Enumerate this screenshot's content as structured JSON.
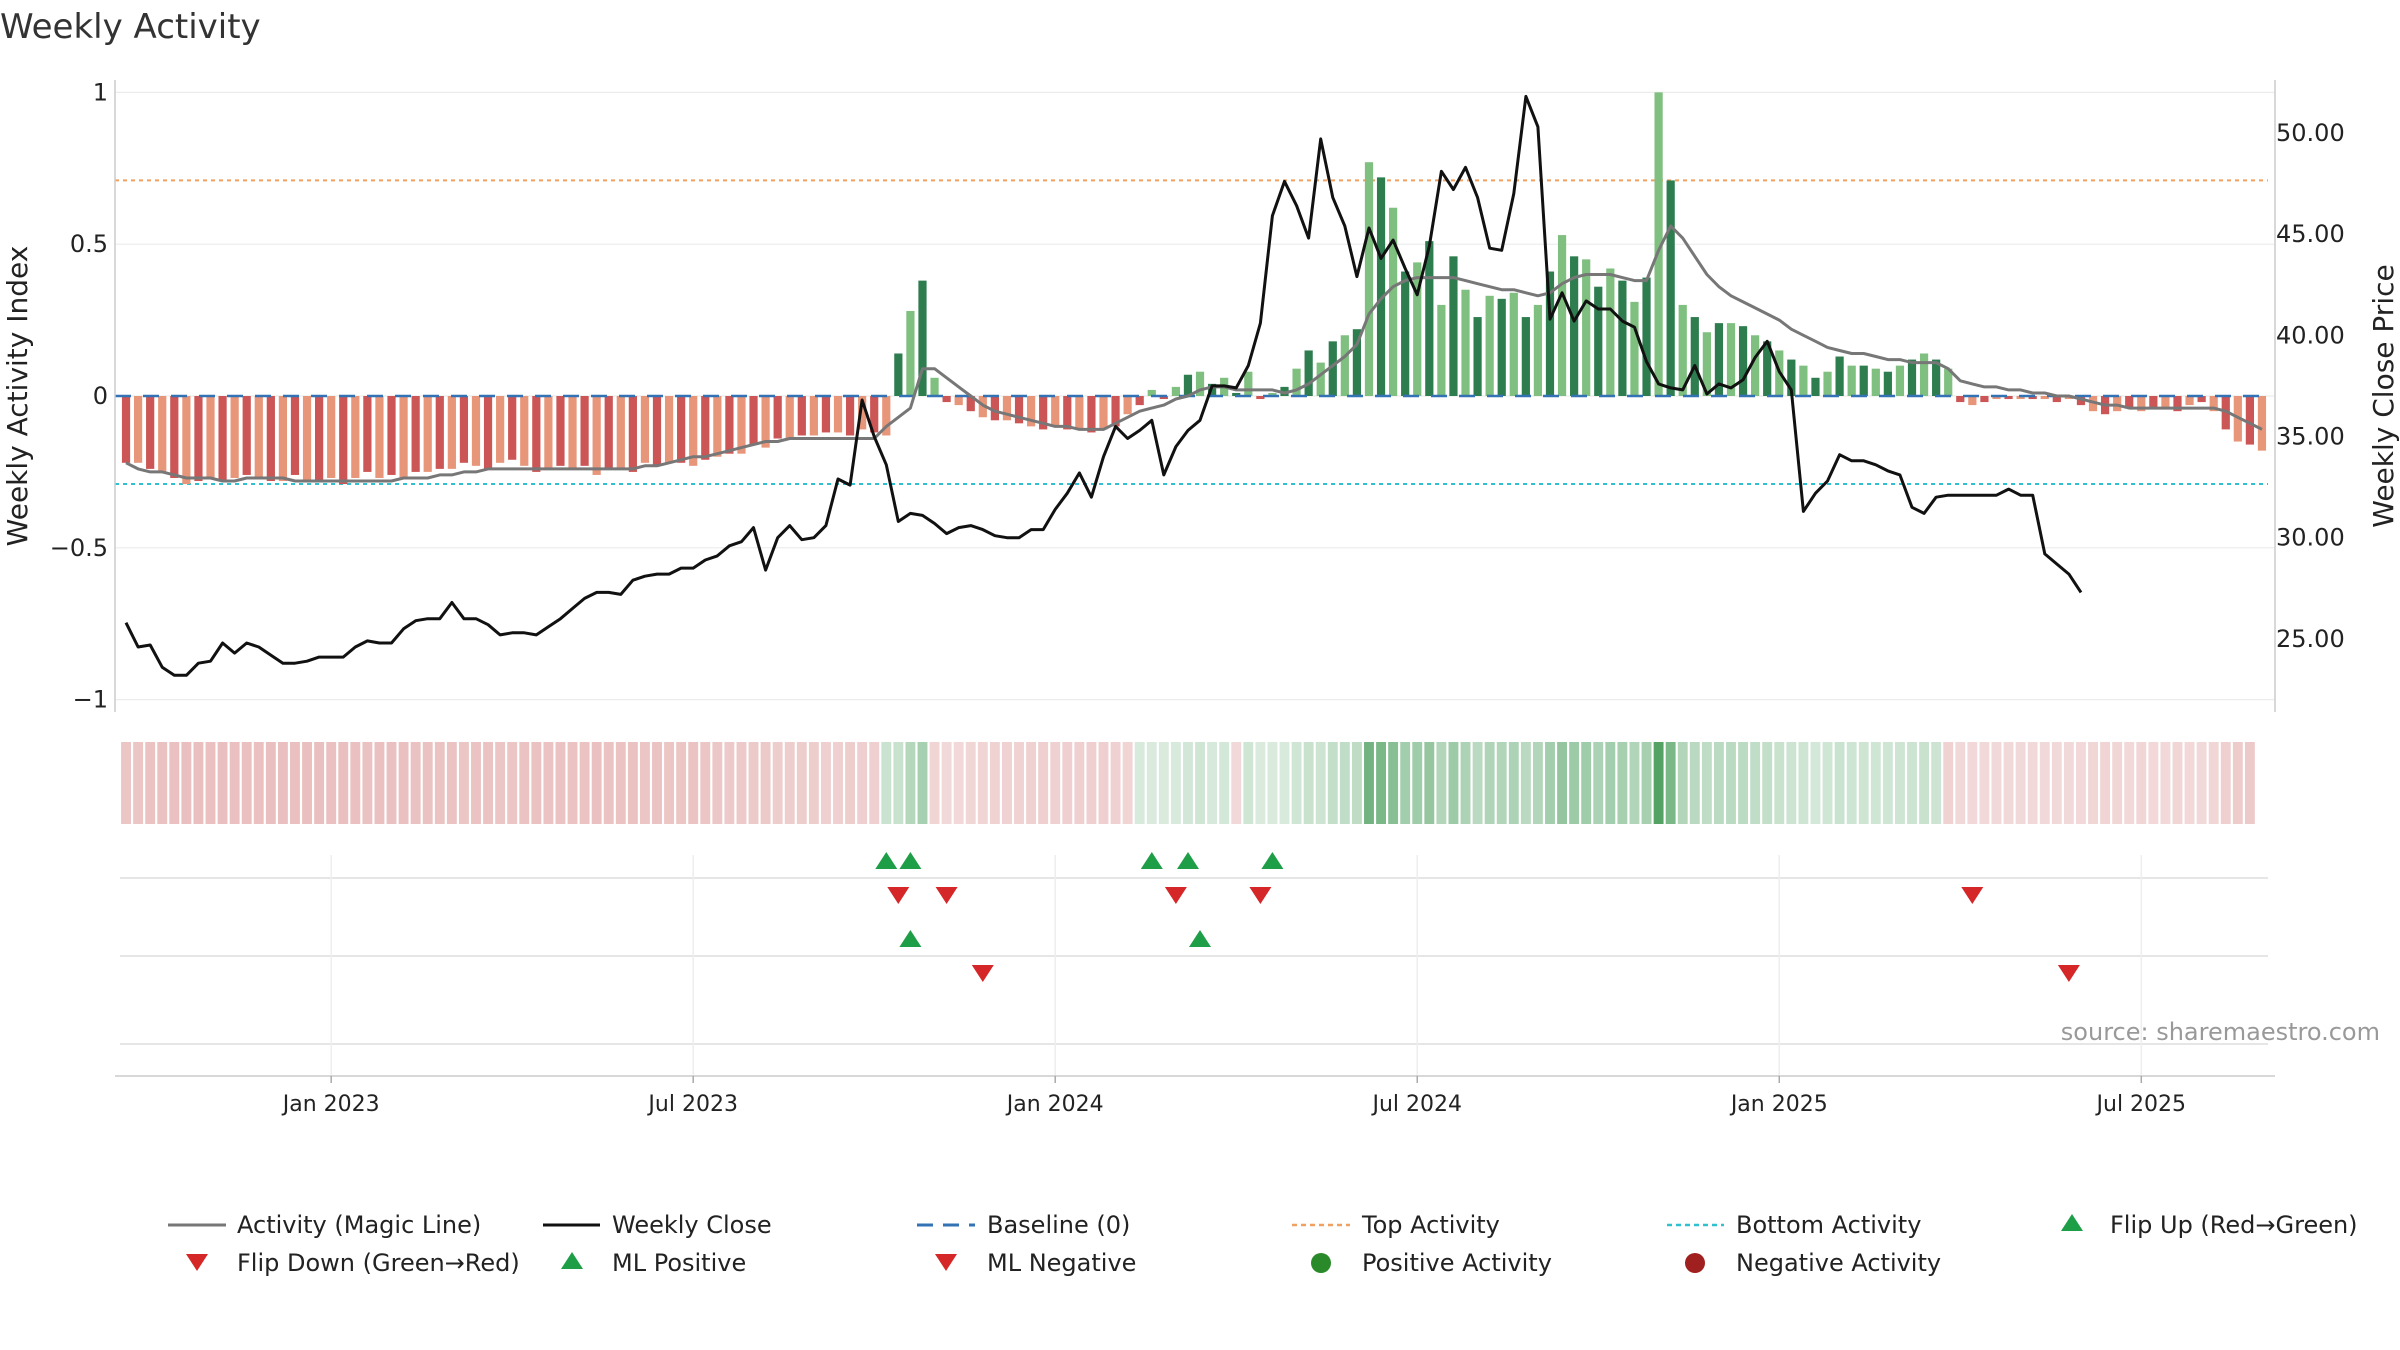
{
  "chart_data": {
    "type": "bar",
    "title": "Weekly Activity",
    "ylabel_left": "Weekly Activity Index",
    "ylabel_right": "Weekly Close Price",
    "ylim_left": [
      -1.1,
      1.1
    ],
    "ylim_right": [
      20.5,
      53.5
    ],
    "left_ticks": [
      {
        "v": 1,
        "label": "1"
      },
      {
        "v": 0.5,
        "label": "0.5"
      },
      {
        "v": 0,
        "label": "0"
      },
      {
        "v": -0.5,
        "label": "−0.5"
      },
      {
        "v": -1,
        "label": "−1"
      }
    ],
    "right_ticks": [
      {
        "v": 50,
        "label": "50.00"
      },
      {
        "v": 45,
        "label": "45.00"
      },
      {
        "v": 40,
        "label": "40.00"
      },
      {
        "v": 35,
        "label": "35.00"
      },
      {
        "v": 30,
        "label": "30.00"
      },
      {
        "v": 25,
        "label": "25.00"
      }
    ],
    "x_ticks": [
      {
        "w": 17.5,
        "label": "Jan 2023"
      },
      {
        "w": 47.5,
        "label": "Jul 2023"
      },
      {
        "w": 77.5,
        "label": "Jan 2024"
      },
      {
        "w": 107.5,
        "label": "Jul 2024"
      },
      {
        "w": 137.5,
        "label": "Jan 2025"
      },
      {
        "w": 167.5,
        "label": "Jul 2025"
      }
    ],
    "top_activity": 0.71,
    "bottom_activity": -0.29,
    "baseline": 0,
    "activity": [
      -0.22,
      -0.22,
      -0.24,
      -0.25,
      -0.27,
      -0.29,
      -0.28,
      -0.27,
      -0.28,
      -0.27,
      -0.26,
      -0.27,
      -0.28,
      -0.28,
      -0.26,
      -0.28,
      -0.28,
      -0.27,
      -0.29,
      -0.27,
      -0.25,
      -0.27,
      -0.26,
      -0.27,
      -0.25,
      -0.25,
      -0.24,
      -0.24,
      -0.22,
      -0.23,
      -0.24,
      -0.22,
      -0.21,
      -0.23,
      -0.25,
      -0.24,
      -0.23,
      -0.24,
      -0.23,
      -0.26,
      -0.24,
      -0.24,
      -0.25,
      -0.22,
      -0.23,
      -0.22,
      -0.22,
      -0.23,
      -0.21,
      -0.2,
      -0.19,
      -0.19,
      -0.16,
      -0.17,
      -0.14,
      -0.14,
      -0.13,
      -0.13,
      -0.12,
      -0.12,
      -0.13,
      -0.11,
      -0.12,
      -0.13,
      0.14,
      0.28,
      0.38,
      0.06,
      -0.02,
      -0.03,
      -0.05,
      -0.07,
      -0.08,
      -0.08,
      -0.09,
      -0.1,
      -0.11,
      -0.1,
      -0.11,
      -0.11,
      -0.12,
      -0.11,
      -0.1,
      -0.06,
      -0.03,
      0.02,
      -0.01,
      0.03,
      0.07,
      0.08,
      0.04,
      0.06,
      0.01,
      0.08,
      -0.01,
      0.01,
      0.03,
      0.09,
      0.15,
      0.11,
      0.18,
      0.2,
      0.22,
      0.77,
      0.72,
      0.62,
      0.41,
      0.44,
      0.51,
      0.3,
      0.46,
      0.35,
      0.26,
      0.33,
      0.32,
      0.34,
      0.26,
      0.3,
      0.41,
      0.53,
      0.46,
      0.45,
      0.36,
      0.42,
      0.38,
      0.31,
      0.39,
      1.0,
      0.71,
      0.3,
      0.26,
      0.21,
      0.24,
      0.24,
      0.23,
      0.2,
      0.18,
      0.15,
      0.12,
      0.1,
      0.06,
      0.08,
      0.13,
      0.1,
      0.1,
      0.09,
      0.08,
      0.1,
      0.12,
      0.14,
      0.12,
      0.09,
      -0.02,
      -0.03,
      -0.02,
      -0.01,
      -0.01,
      -0.01,
      -0.01,
      -0.01,
      -0.02,
      -0.01,
      -0.03,
      -0.05,
      -0.06,
      -0.05,
      -0.04,
      -0.05,
      -0.04,
      -0.04,
      -0.05,
      -0.03,
      -0.02,
      -0.05,
      -0.11,
      -0.15,
      -0.16,
      -0.18
    ],
    "magic_line": [
      -0.22,
      -0.24,
      -0.25,
      -0.25,
      -0.26,
      -0.27,
      -0.27,
      -0.27,
      -0.28,
      -0.28,
      -0.27,
      -0.27,
      -0.27,
      -0.27,
      -0.28,
      -0.28,
      -0.28,
      -0.28,
      -0.28,
      -0.28,
      -0.28,
      -0.28,
      -0.28,
      -0.27,
      -0.27,
      -0.27,
      -0.26,
      -0.26,
      -0.25,
      -0.25,
      -0.24,
      -0.24,
      -0.24,
      -0.24,
      -0.24,
      -0.24,
      -0.24,
      -0.24,
      -0.24,
      -0.24,
      -0.24,
      -0.24,
      -0.24,
      -0.23,
      -0.23,
      -0.22,
      -0.21,
      -0.2,
      -0.2,
      -0.19,
      -0.18,
      -0.17,
      -0.16,
      -0.15,
      -0.15,
      -0.14,
      -0.14,
      -0.14,
      -0.14,
      -0.14,
      -0.14,
      -0.14,
      -0.14,
      -0.1,
      -0.07,
      -0.04,
      0.09,
      0.09,
      0.06,
      0.03,
      0,
      -0.03,
      -0.05,
      -0.06,
      -0.07,
      -0.08,
      -0.09,
      -0.1,
      -0.1,
      -0.11,
      -0.11,
      -0.11,
      -0.09,
      -0.07,
      -0.05,
      -0.04,
      -0.03,
      -0.01,
      0,
      0.02,
      0.03,
      0.03,
      0.02,
      0.02,
      0.02,
      0.02,
      0.01,
      0.02,
      0.04,
      0.07,
      0.1,
      0.13,
      0.17,
      0.27,
      0.32,
      0.36,
      0.38,
      0.39,
      0.39,
      0.39,
      0.39,
      0.38,
      0.37,
      0.36,
      0.35,
      0.35,
      0.34,
      0.33,
      0.34,
      0.37,
      0.39,
      0.4,
      0.4,
      0.4,
      0.39,
      0.38,
      0.38,
      0.48,
      0.56,
      0.52,
      0.46,
      0.4,
      0.36,
      0.33,
      0.31,
      0.29,
      0.27,
      0.25,
      0.22,
      0.2,
      0.18,
      0.16,
      0.15,
      0.14,
      0.14,
      0.13,
      0.12,
      0.12,
      0.11,
      0.11,
      0.11,
      0.09,
      0.05,
      0.04,
      0.03,
      0.03,
      0.02,
      0.02,
      0.01,
      0.01,
      0,
      0,
      -0.01,
      -0.02,
      -0.03,
      -0.03,
      -0.04,
      -0.04,
      -0.04,
      -0.04,
      -0.04,
      -0.04,
      -0.04,
      -0.04,
      -0.05,
      -0.07,
      -0.09,
      -0.11
    ],
    "weekly_close": [
      25.8,
      24.6,
      24.7,
      23.6,
      23.2,
      23.2,
      23.8,
      23.9,
      24.8,
      24.3,
      24.8,
      24.6,
      24.2,
      23.8,
      23.8,
      23.9,
      24.1,
      24.1,
      24.1,
      24.6,
      24.9,
      24.8,
      24.8,
      25.5,
      25.9,
      26.0,
      26.0,
      26.8,
      26.0,
      26.0,
      25.7,
      25.2,
      25.3,
      25.3,
      25.2,
      25.6,
      26.0,
      26.5,
      27.0,
      27.3,
      27.3,
      27.2,
      27.9,
      28.1,
      28.2,
      28.2,
      28.5,
      28.5,
      28.9,
      29.1,
      29.6,
      29.8,
      30.5,
      28.4,
      30.0,
      30.6,
      29.9,
      30.0,
      30.6,
      32.9,
      32.6,
      36.8,
      35.0,
      33.6,
      30.8,
      31.2,
      31.1,
      30.7,
      30.2,
      30.5,
      30.6,
      30.4,
      30.1,
      30.0,
      30.0,
      30.4,
      30.4,
      31.4,
      32.2,
      33.2,
      32.0,
      34.0,
      35.5,
      34.9,
      35.3,
      35.8,
      33.1,
      34.5,
      35.3,
      35.8,
      37.5,
      37.5,
      37.4,
      38.5,
      40.6,
      45.9,
      47.6,
      46.4,
      44.8,
      49.7,
      46.8,
      45.4,
      42.9,
      45.3,
      43.8,
      44.7,
      43.3,
      42.0,
      44.4,
      48.1,
      47.2,
      48.3,
      46.8,
      44.3,
      44.2,
      47.0,
      51.8,
      50.3,
      40.8,
      42.1,
      40.7,
      41.7,
      41.3,
      41.3,
      40.7,
      40.4,
      38.7,
      37.6,
      37.4,
      37.3,
      38.5,
      37.1,
      37.6,
      37.4,
      37.8,
      38.9,
      39.7,
      38.2,
      37.3,
      31.3,
      32.2,
      32.8,
      34.1,
      33.8,
      33.8,
      33.6,
      33.3,
      33.1,
      31.5,
      31.2,
      32.0,
      32.1,
      32.1,
      32.1,
      32.1,
      32.1,
      32.4,
      32.1,
      32.1,
      29.2,
      28.7,
      28.2,
      27.3
    ],
    "ml_signal": [
      "n",
      "n",
      "n",
      "n",
      "n",
      "n",
      "n",
      "n",
      "n",
      "n",
      "n",
      "n",
      "n",
      "n",
      "n",
      "n",
      "n",
      "n",
      "n",
      "n",
      "n",
      "n",
      "n",
      "n",
      "n",
      "n",
      "n",
      "n",
      "n",
      "n",
      "n",
      "n",
      "n",
      "n",
      "n",
      "n",
      "n",
      "n",
      "n",
      "n",
      "n",
      "n",
      "n",
      "n",
      "n",
      "n",
      "n",
      "n",
      "n",
      "n",
      "n",
      "n",
      "n",
      "n",
      "n",
      "n",
      "n",
      "n",
      "n",
      "n",
      "n",
      "n",
      "n",
      "p",
      "p",
      "p",
      "p",
      "n",
      "n",
      "n",
      "n",
      "n",
      "n",
      "n",
      "n",
      "n",
      "n",
      "n",
      "n",
      "n",
      "n",
      "n",
      "n",
      "n",
      "p",
      "p",
      "p",
      "p",
      "p",
      "p",
      "p",
      "p",
      "n",
      "p",
      "p",
      "p",
      "p",
      "p",
      "p",
      "p",
      "p",
      "p",
      "p",
      "p",
      "p",
      "p",
      "p",
      "p",
      "p",
      "p",
      "p",
      "p",
      "p",
      "p",
      "p",
      "p",
      "p",
      "p",
      "p",
      "p",
      "p",
      "p",
      "p",
      "p",
      "p",
      "p",
      "p",
      "p",
      "p",
      "p",
      "p",
      "p",
      "p",
      "p",
      "p",
      "p",
      "p",
      "p",
      "p",
      "p",
      "p",
      "p",
      "p",
      "p",
      "p",
      "p",
      "p",
      "p",
      "p",
      "p",
      "p",
      "n",
      "n",
      "n",
      "n",
      "n",
      "n",
      "n",
      "n",
      "n",
      "n",
      "n",
      "n",
      "n",
      "n",
      "n",
      "n",
      "n",
      "n",
      "n",
      "n",
      "n",
      "n",
      "n",
      "n",
      "n",
      "n"
    ],
    "flip_up_weeks": [
      63,
      65,
      85,
      88,
      95
    ],
    "flip_down_weeks": [
      64,
      68,
      87,
      94,
      153
    ],
    "ml_positive_weeks": [
      65,
      89
    ],
    "ml_negative_weeks": [
      71,
      161
    ],
    "legend": [
      "Activity (Magic Line)",
      "Weekly Close",
      "Baseline (0)",
      "Top Activity",
      "Bottom Activity",
      "Flip Up (Red→Green)",
      "Flip Down (Green→Red)",
      "ML Positive",
      "ML Negative",
      "Positive Activity",
      "Negative Activity"
    ],
    "source": "source: sharemaestro.com",
    "colors": {
      "pos_dark": "#2e7d4f",
      "pos_light": "#7fbf7f",
      "neg_dark": "#cc5555",
      "neg_light": "#e8967a",
      "magic_line": "#777777",
      "close_line": "#111111",
      "baseline": "#3373b5",
      "top_line": "#f0a060",
      "bottom_line": "#30c0d0",
      "flip_up": "#1f9e48",
      "flip_down": "#d62728",
      "pos_dot": "#2a8a2a",
      "neg_dot": "#a02020"
    }
  }
}
